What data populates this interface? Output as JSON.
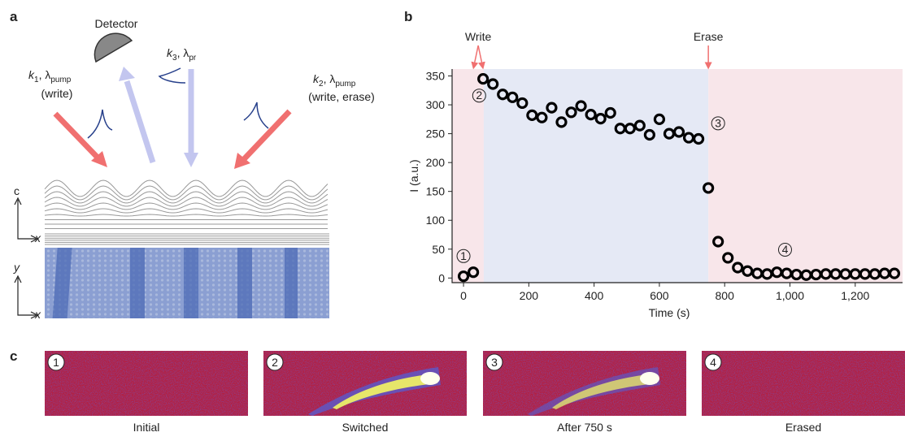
{
  "panel_labels": [
    "a",
    "b",
    "c"
  ],
  "diagram": {
    "detector": "Detector",
    "beam_1": {
      "k": "k",
      "k_sub": "1",
      "lambda": ", λ",
      "lambda_sub": "pump",
      "note": "(write)"
    },
    "beam_3": {
      "k": "k",
      "k_sub": "3",
      "lambda": ", λ",
      "lambda_sub": "pr"
    },
    "beam_2": {
      "k": "k",
      "k_sub": "2",
      "lambda": ", λ",
      "lambda_sub": "pump",
      "note": "(write, erase)"
    },
    "axes_top": [
      "c",
      "x"
    ],
    "axes_bottom": [
      "y",
      "x"
    ]
  },
  "chart_data": {
    "type": "scatter",
    "xlabel": "Time (s)",
    "ylabel": "I (a.u.)",
    "x": [
      0,
      30,
      60,
      90,
      120,
      150,
      180,
      210,
      240,
      270,
      300,
      330,
      360,
      390,
      420,
      450,
      480,
      510,
      540,
      570,
      600,
      630,
      660,
      690,
      720,
      750,
      780,
      810,
      840,
      870,
      900,
      930,
      960,
      990,
      1020,
      1050,
      1080,
      1110,
      1140,
      1170,
      1200,
      1230,
      1260,
      1290,
      1320
    ],
    "values": [
      3,
      10,
      345,
      336,
      318,
      313,
      303,
      282,
      278,
      295,
      270,
      287,
      298,
      283,
      276,
      286,
      259,
      259,
      264,
      248,
      275,
      250,
      253,
      243,
      241,
      156,
      63,
      35,
      18,
      12,
      8,
      7,
      10,
      8,
      6,
      5,
      6,
      7,
      7,
      7,
      7,
      7,
      7,
      8,
      8
    ],
    "color": "#000000",
    "xlim": [
      -35,
      1345
    ],
    "ylim": [
      -8,
      362
    ],
    "xticks": [
      0,
      200,
      400,
      600,
      800,
      {
        "value": 1000,
        "label": "1,000"
      },
      {
        "value": 1200,
        "label": "1,200"
      }
    ],
    "yticks": [
      0,
      50,
      100,
      150,
      200,
      250,
      300,
      350
    ],
    "shaded_regions": [
      {
        "from": -35,
        "to": 62,
        "color": "#f8e6ea"
      },
      {
        "from": 62,
        "to": 750,
        "color": "#e5e9f5"
      },
      {
        "from": 750,
        "to": 1345,
        "color": "#f8e6ea"
      }
    ],
    "annotations": [
      {
        "text": "Write",
        "targets": [
          32,
          58
        ],
        "color": "#f07070"
      },
      {
        "text": "Erase",
        "targets": [
          750
        ],
        "color": "#f07070"
      }
    ],
    "markers": [
      {
        "text": "1",
        "x": 0,
        "y": 38
      },
      {
        "text": "2",
        "x": 48,
        "y": 316
      },
      {
        "text": "3",
        "x": 780,
        "y": 268
      },
      {
        "text": "4",
        "x": 985,
        "y": 49
      }
    ]
  },
  "images": [
    {
      "number": "1",
      "caption": "Initial"
    },
    {
      "number": "2",
      "caption": "Switched"
    },
    {
      "number": "3",
      "caption": "After 750 s"
    },
    {
      "number": "4",
      "caption": "Erased"
    }
  ]
}
